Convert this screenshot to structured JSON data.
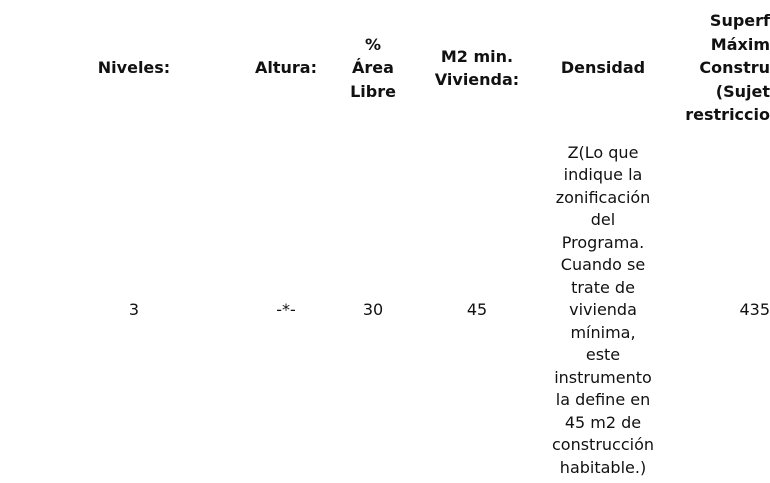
{
  "table": {
    "headers": [
      "Niveles:",
      "Altura:",
      "%\nÁrea\nLibre",
      "M2 min.\nVivienda:",
      "Densidad",
      "Superf\nMáxim\nConstru\n(Sujet\nrestriccio"
    ],
    "rows": [
      [
        "3",
        "-*-",
        "30",
        "45",
        "Z(Lo que\nindique la\nzonificación\ndel\nPrograma.\nCuando se\ntrate de\nvivienda\nmínima,\neste\ninstrumento\nla define en\n45 m2 de\nconstrucción\nhabitable.)",
        "435"
      ]
    ]
  }
}
